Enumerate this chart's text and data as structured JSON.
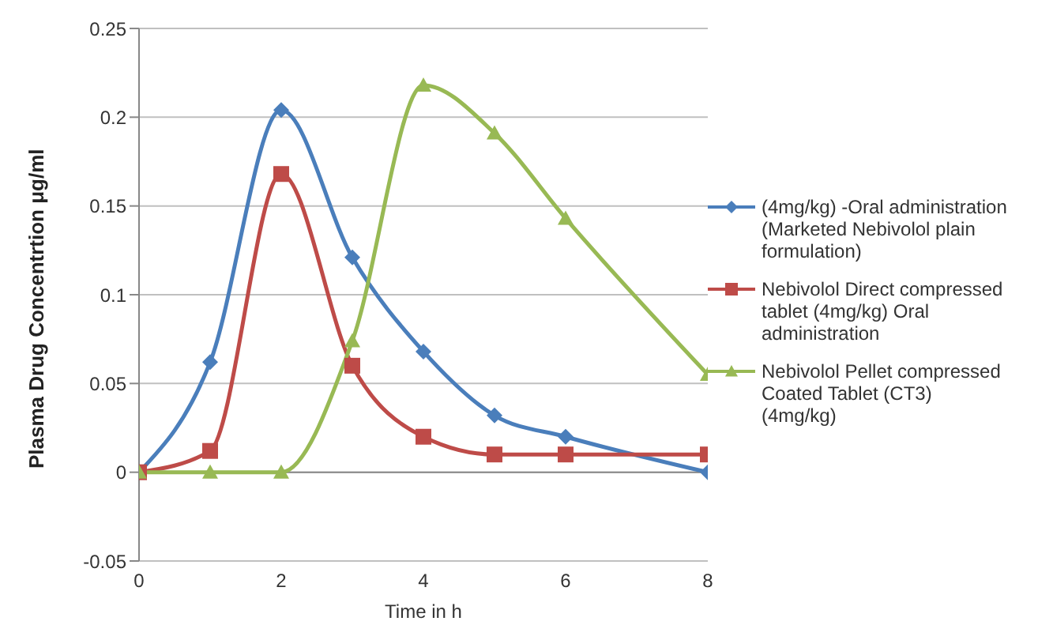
{
  "chart_data": {
    "type": "line",
    "xlabel": "Time in h",
    "ylabel": "Plasma Drug Concentrtion  μg/ml",
    "x": [
      0,
      1,
      2,
      3,
      4,
      5,
      6,
      8
    ],
    "series": [
      {
        "name": "(4mg/kg) -Oral administration  (Marketed Nebivolol plain formulation)",
        "color": "#4a7ebb",
        "marker": "diamond",
        "values": [
          0,
          0.062,
          0.204,
          0.121,
          0.068,
          0.032,
          0.02,
          0
        ]
      },
      {
        "name": "Nebivolol Direct compressed tablet (4mg/kg)   Oral administration",
        "color": "#be4b48",
        "marker": "square",
        "values": [
          0,
          0.012,
          0.168,
          0.06,
          0.02,
          0.01,
          0.01,
          0.01
        ]
      },
      {
        "name": "Nebivolol Pellet compressed Coated Tablet (CT3) (4mg/kg)",
        "color": "#98b954",
        "marker": "triangle",
        "values": [
          0,
          0,
          0,
          0.074,
          0.218,
          0.191,
          0.143,
          0.055
        ]
      }
    ],
    "xlim": [
      0,
      8
    ],
    "xticks": [
      0,
      2,
      4,
      6,
      8
    ],
    "ylim": [
      -0.05,
      0.25
    ],
    "yticks": [
      -0.05,
      0,
      0.05,
      0.1,
      0.15,
      0.2,
      0.25
    ],
    "grid": "y",
    "legend": "right",
    "line_style": "solid"
  }
}
